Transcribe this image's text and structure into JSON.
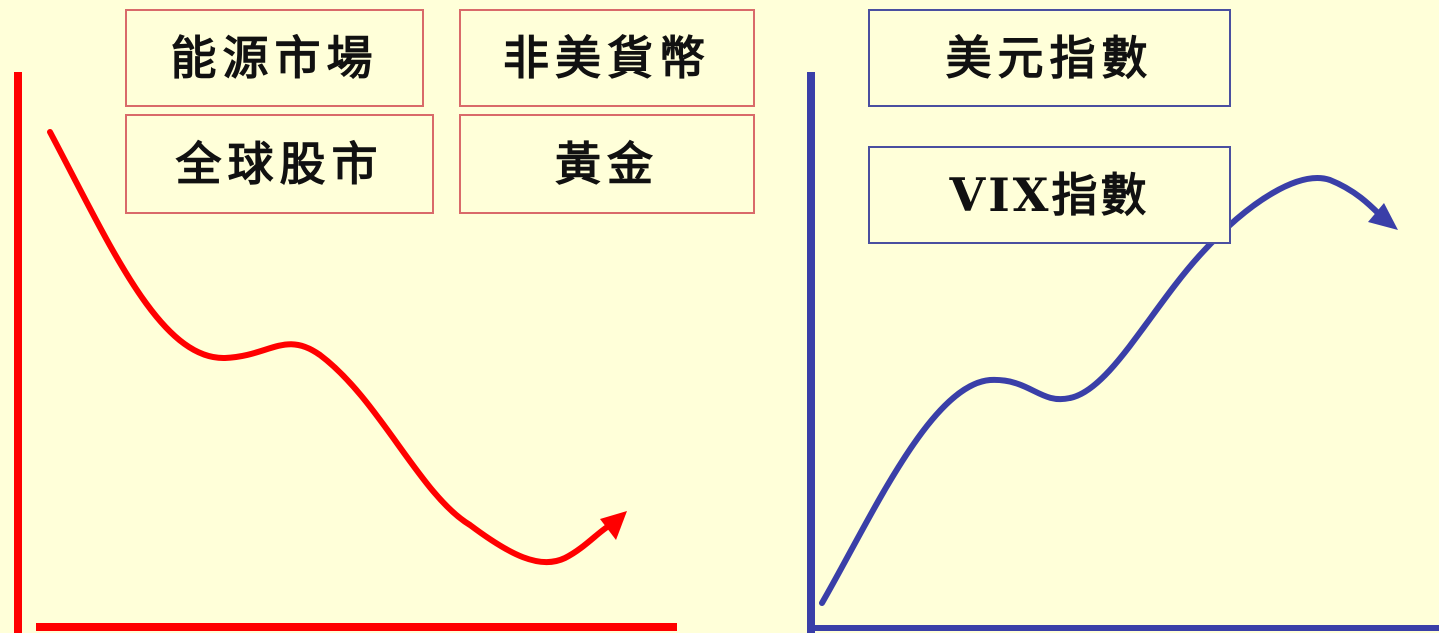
{
  "left_group": {
    "color": "#FF0000",
    "box_border_color": "#D96A6A",
    "labels": {
      "energy": "能源市場",
      "non_usd": "非美貨幣",
      "stocks": "全球股市",
      "gold": "黃金"
    }
  },
  "right_group": {
    "color": "#3A3FA8",
    "box_border_color": "#4A4FA0",
    "labels": {
      "dxy": "美元指數",
      "vix": "VIX指數"
    }
  },
  "background_color": "#FFFFD9"
}
